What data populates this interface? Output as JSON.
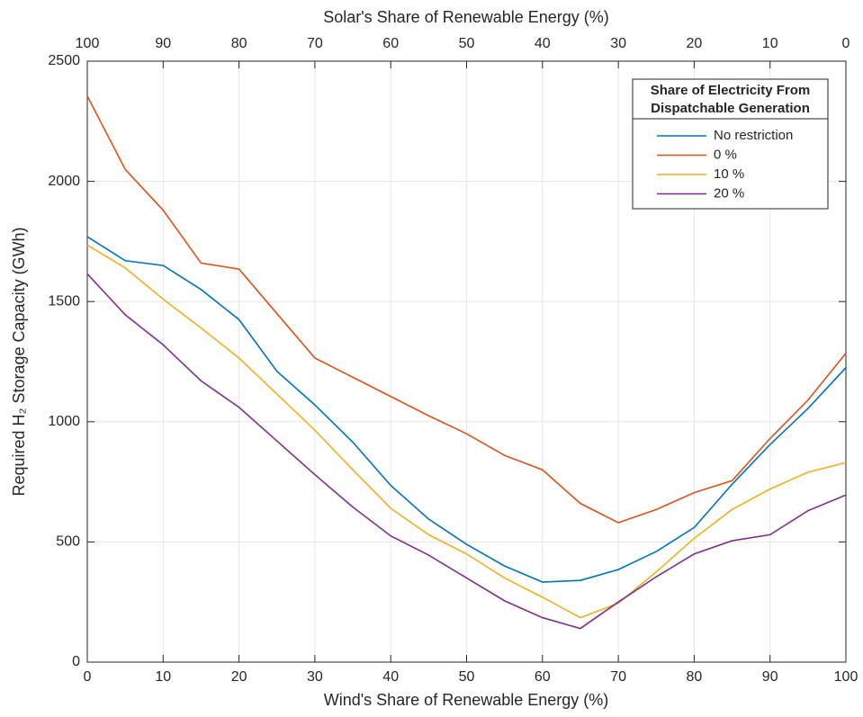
{
  "chart_data": {
    "type": "line",
    "xlabel": "Wind's Share of Renewable Energy (%)",
    "x2label": "Solar's Share of Renewable Energy (%)",
    "ylabel": "Required H₂ Storage Capacity (GWh)",
    "x": [
      0,
      5,
      10,
      15,
      20,
      25,
      30,
      35,
      40,
      45,
      50,
      55,
      60,
      65,
      70,
      75,
      80,
      85,
      90,
      95,
      100
    ],
    "series": [
      {
        "name": "No restriction",
        "color": "#0072BD",
        "values": [
          1770,
          1670,
          1650,
          1550,
          1425,
          1210,
          1070,
          915,
          735,
          595,
          490,
          400,
          333,
          340,
          385,
          460,
          560,
          740,
          905,
          1055,
          1225
        ]
      },
      {
        "name": "0 %",
        "color": "#D95319",
        "values": [
          2355,
          2050,
          1880,
          1660,
          1635,
          1450,
          1265,
          1185,
          1105,
          1025,
          950,
          860,
          800,
          660,
          580,
          635,
          705,
          755,
          930,
          1090,
          1285
        ]
      },
      {
        "name": "10 %",
        "color": "#EDB120",
        "values": [
          1735,
          1640,
          1510,
          1390,
          1265,
          1115,
          965,
          800,
          640,
          530,
          450,
          350,
          270,
          185,
          245,
          375,
          515,
          635,
          720,
          790,
          830
        ]
      },
      {
        "name": "20 %",
        "color": "#7E2F8E",
        "values": [
          1615,
          1445,
          1320,
          1170,
          1060,
          920,
          780,
          645,
          525,
          445,
          350,
          255,
          185,
          140,
          250,
          355,
          450,
          505,
          530,
          630,
          695
        ]
      }
    ],
    "legend_title": [
      "Share of Electricity From",
      "Dispatchable Generation"
    ],
    "legend": "upper right",
    "xlim": [
      0,
      100
    ],
    "xticks": [
      0,
      10,
      20,
      30,
      40,
      50,
      60,
      70,
      80,
      90,
      100
    ],
    "x2lim": [
      100,
      0
    ],
    "x2ticks": [
      100,
      90,
      80,
      70,
      60,
      50,
      40,
      30,
      20,
      10,
      0
    ],
    "ylim": [
      0,
      2500
    ],
    "yticks": [
      0,
      500,
      1000,
      1500,
      2000,
      2500
    ],
    "grid": true
  }
}
